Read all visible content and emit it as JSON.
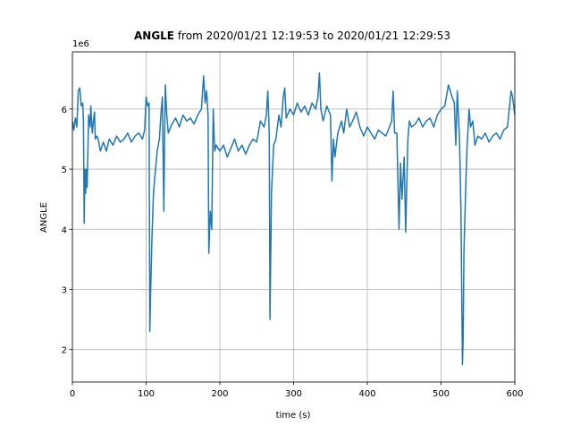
{
  "chart_data": {
    "type": "line",
    "title": [
      "ANGLE",
      " from 2020/01/21 12:19:53 to 2020/01/21 12:29:53"
    ],
    "y_offset_label": "1e6",
    "xlabel": "time (s)",
    "ylabel": "ANGLE",
    "xlim": [
      0,
      600
    ],
    "ylim": [
      1.46,
      6.95
    ],
    "xticks": [
      0,
      100,
      200,
      300,
      400,
      500,
      600
    ],
    "yticks": [
      2,
      3,
      4,
      5,
      6
    ],
    "grid": true,
    "series": [
      {
        "name": "ANGLE",
        "color": "#1f77b4",
        "x": [
          0,
          2,
          4,
          6,
          8,
          10,
          12,
          14,
          15,
          16,
          17,
          18,
          19,
          20,
          22,
          24,
          25,
          27,
          29,
          30,
          31,
          33,
          35,
          38,
          42,
          46,
          50,
          55,
          60,
          65,
          70,
          75,
          80,
          85,
          90,
          95,
          98,
          100,
          102,
          104,
          105,
          106,
          108,
          110,
          112,
          115,
          118,
          120,
          122,
          124,
          125,
          126,
          128,
          130,
          135,
          140,
          145,
          150,
          155,
          160,
          165,
          170,
          175,
          178,
          180,
          182,
          184,
          185,
          187,
          189,
          191,
          193,
          195,
          200,
          205,
          210,
          215,
          220,
          225,
          230,
          235,
          240,
          245,
          250,
          255,
          260,
          263,
          265,
          267,
          268,
          270,
          273,
          276,
          280,
          283,
          286,
          288,
          290,
          295,
          300,
          305,
          310,
          315,
          320,
          325,
          330,
          333,
          335,
          337,
          340,
          345,
          350,
          352,
          354,
          356,
          360,
          365,
          368,
          372,
          376,
          380,
          385,
          390,
          395,
          400,
          405,
          410,
          415,
          420,
          425,
          430,
          433,
          435,
          437,
          440,
          443,
          445,
          447,
          450,
          452,
          455,
          457,
          460,
          465,
          470,
          475,
          480,
          485,
          490,
          495,
          500,
          505,
          510,
          515,
          518,
          520,
          522,
          525,
          527,
          529,
          530,
          531,
          533,
          535,
          538,
          540,
          543,
          546,
          550,
          555,
          560,
          565,
          570,
          575,
          580,
          585,
          590,
          595,
          597,
          600
        ],
        "values": [
          5.8,
          5.65,
          5.85,
          5.7,
          6.3,
          6.35,
          6.05,
          6.1,
          5.8,
          4.1,
          5.0,
          4.6,
          5.0,
          4.7,
          5.9,
          5.7,
          6.05,
          5.6,
          5.85,
          5.95,
          5.5,
          5.55,
          5.5,
          5.3,
          5.45,
          5.3,
          5.5,
          5.4,
          5.55,
          5.45,
          5.5,
          5.6,
          5.45,
          5.55,
          5.6,
          5.5,
          5.65,
          6.2,
          6.05,
          6.1,
          2.3,
          2.9,
          3.9,
          4.6,
          4.9,
          5.3,
          5.5,
          5.9,
          6.2,
          4.3,
          5.5,
          6.4,
          5.9,
          5.6,
          5.75,
          5.85,
          5.7,
          5.9,
          5.8,
          5.85,
          5.75,
          5.9,
          6.0,
          6.55,
          6.1,
          6.3,
          5.9,
          3.6,
          4.3,
          4.0,
          6.0,
          5.3,
          5.4,
          5.3,
          5.4,
          5.2,
          5.35,
          5.5,
          5.3,
          5.4,
          5.25,
          5.4,
          5.5,
          5.45,
          5.8,
          5.7,
          5.9,
          6.3,
          5.6,
          2.5,
          4.6,
          5.4,
          5.5,
          5.9,
          5.7,
          6.2,
          6.35,
          5.85,
          6.0,
          5.9,
          6.1,
          5.95,
          6.05,
          5.9,
          6.1,
          6.0,
          6.2,
          6.6,
          6.0,
          5.8,
          6.05,
          5.9,
          4.8,
          5.5,
          5.2,
          5.6,
          5.8,
          5.6,
          6.0,
          5.7,
          5.8,
          5.95,
          5.7,
          5.55,
          5.7,
          5.6,
          5.5,
          5.65,
          5.6,
          5.55,
          5.7,
          5.8,
          6.3,
          5.6,
          5.6,
          4.0,
          5.1,
          4.5,
          5.2,
          3.95,
          5.5,
          5.8,
          5.7,
          5.75,
          5.85,
          5.7,
          5.8,
          5.85,
          5.7,
          5.9,
          6.0,
          6.05,
          6.4,
          6.2,
          6.1,
          5.4,
          6.3,
          5.5,
          4.3,
          1.75,
          2.2,
          3.6,
          4.5,
          5.3,
          6.0,
          5.7,
          5.8,
          5.4,
          5.55,
          5.5,
          5.6,
          5.45,
          5.55,
          5.6,
          5.5,
          5.65,
          5.7,
          6.3,
          6.2,
          5.9
        ]
      }
    ]
  }
}
